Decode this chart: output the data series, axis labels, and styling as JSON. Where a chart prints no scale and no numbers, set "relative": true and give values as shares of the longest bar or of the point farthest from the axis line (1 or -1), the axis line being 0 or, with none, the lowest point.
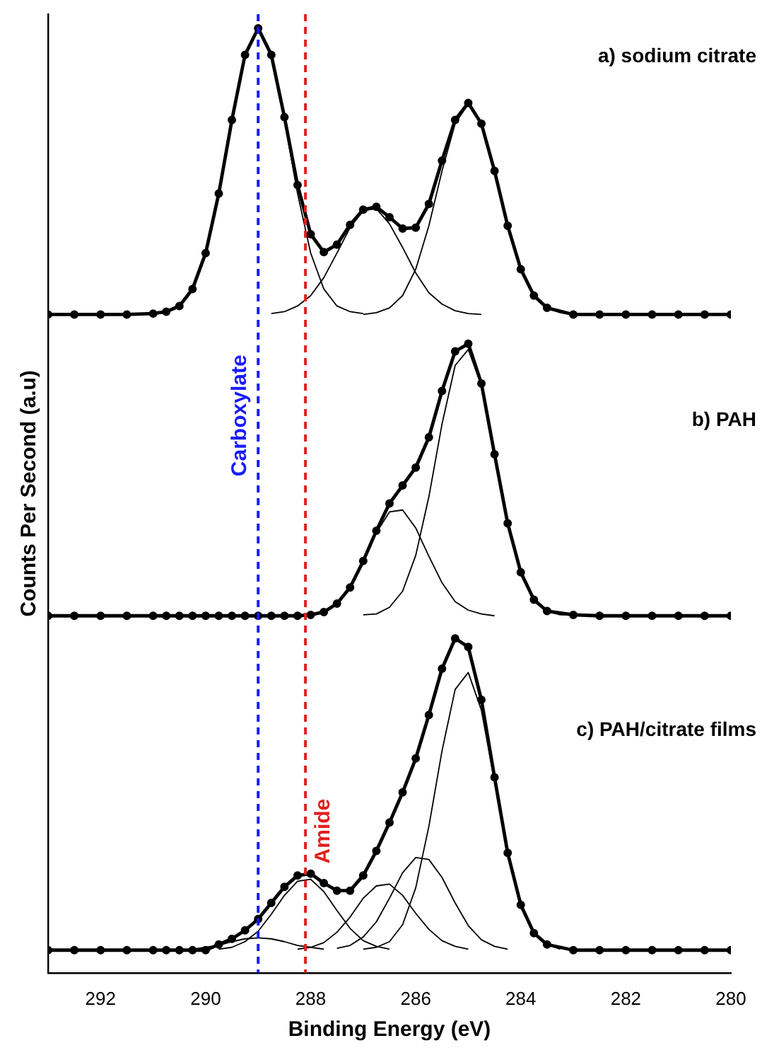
{
  "chart_data": {
    "type": "line",
    "relative": true,
    "xlabel": "Binding Energy (eV)",
    "ylabel": "Counts Per Second (a.u)",
    "xlim": [
      293,
      280
    ],
    "xticks": [
      292,
      290,
      288,
      286,
      284,
      282,
      280
    ],
    "tick_labels": "x",
    "legend": false,
    "line_style": "solid",
    "annotations": [
      "a) sodium citrate",
      "b) PAH",
      "c) PAH/citrate films"
    ],
    "x": [
      293,
      292.5,
      292,
      291.5,
      291,
      290.75,
      290.5,
      290.25,
      290,
      289.75,
      289.5,
      289.25,
      289,
      288.75,
      288.5,
      288.25,
      288,
      287.75,
      287.5,
      287.25,
      287,
      286.75,
      286.5,
      286.25,
      286,
      285.75,
      285.5,
      285.25,
      285,
      284.75,
      284.5,
      284.25,
      284,
      283.75,
      283.5,
      283,
      282.5,
      282,
      281.5,
      281,
      280.5,
      280
    ],
    "ref_lines": [
      {
        "axis": "x",
        "value": 289,
        "label": "Carboxylate",
        "color": "#1a1aff",
        "line_style": "dashed"
      },
      {
        "axis": "x",
        "value": 288.1,
        "label": "Amide",
        "color": "#e02020",
        "line_style": "dashed"
      }
    ],
    "series": [
      {
        "color": "#000000",
        "marker": "circle",
        "values": [
          0.697,
          0.697,
          0.697,
          0.697,
          0.698,
          0.7,
          0.706,
          0.724,
          0.762,
          0.825,
          0.903,
          0.972,
          1.0,
          0.972,
          0.906,
          0.834,
          0.782,
          0.763,
          0.771,
          0.792,
          0.808,
          0.811,
          0.8,
          0.788,
          0.789,
          0.814,
          0.86,
          0.903,
          0.921,
          0.899,
          0.849,
          0.791,
          0.745,
          0.717,
          0.704,
          0.697,
          0.697,
          0.697,
          0.697,
          0.697,
          0.697,
          0.697
        ]
      },
      {
        "color": "#000000",
        "marker": "none",
        "x": [
          291,
          290.75,
          290.5,
          290.25,
          290,
          289.75,
          289.5,
          289.25,
          289,
          288.75,
          288.5,
          288.25,
          288,
          287.75,
          287.5,
          287.25,
          287
        ],
        "values": [
          0.698,
          0.7,
          0.706,
          0.724,
          0.762,
          0.825,
          0.903,
          0.972,
          1.0,
          0.972,
          0.903,
          0.825,
          0.762,
          0.724,
          0.706,
          0.7,
          0.698
        ]
      },
      {
        "color": "#000000",
        "marker": "none",
        "x": [
          288.75,
          288.5,
          288.25,
          288,
          287.75,
          287.5,
          287.25,
          287,
          286.75,
          286.5,
          286.25,
          286,
          285.75,
          285.5,
          285.25,
          285,
          284.75
        ],
        "values": [
          0.698,
          0.7,
          0.706,
          0.717,
          0.736,
          0.762,
          0.789,
          0.807,
          0.809,
          0.793,
          0.768,
          0.741,
          0.72,
          0.708,
          0.701,
          0.698,
          0.697
        ]
      },
      {
        "color": "#000000",
        "marker": "none",
        "x": [
          287,
          286.75,
          286.5,
          286.25,
          286,
          285.75,
          285.5,
          285.25,
          285,
          284.75,
          284.5,
          284.25,
          284,
          283.75,
          283.5,
          283.25,
          283
        ],
        "values": [
          0.697,
          0.699,
          0.704,
          0.717,
          0.745,
          0.791,
          0.849,
          0.899,
          0.92,
          0.899,
          0.849,
          0.791,
          0.745,
          0.717,
          0.704,
          0.699,
          0.697
        ]
      },
      {
        "color": "#000000",
        "marker": "circle",
        "values": [
          0.378,
          0.378,
          0.378,
          0.378,
          0.378,
          0.378,
          0.378,
          0.378,
          0.378,
          0.378,
          0.378,
          0.378,
          0.378,
          0.378,
          0.378,
          0.378,
          0.379,
          0.382,
          0.391,
          0.408,
          0.436,
          0.468,
          0.497,
          0.516,
          0.535,
          0.567,
          0.616,
          0.658,
          0.666,
          0.624,
          0.549,
          0.476,
          0.424,
          0.395,
          0.383,
          0.379,
          0.378,
          0.378,
          0.378,
          0.378,
          0.378,
          0.378
        ]
      },
      {
        "color": "#000000",
        "marker": "none",
        "x": [
          288.25,
          288,
          287.75,
          287.5,
          287.25,
          287,
          286.75,
          286.5,
          286.25,
          286,
          285.75,
          285.5,
          285.25,
          285,
          284.75,
          284.5
        ],
        "values": [
          0.378,
          0.379,
          0.382,
          0.391,
          0.408,
          0.435,
          0.466,
          0.488,
          0.49,
          0.471,
          0.441,
          0.413,
          0.393,
          0.384,
          0.38,
          0.378
        ]
      },
      {
        "color": "#000000",
        "marker": "none",
        "x": [
          287,
          286.75,
          286.5,
          286.25,
          286,
          285.75,
          285.5,
          285.25,
          285,
          284.75,
          284.5,
          284.25,
          284,
          283.75,
          283.5,
          283.25,
          283
        ],
        "values": [
          0.379,
          0.38,
          0.387,
          0.404,
          0.442,
          0.504,
          0.581,
          0.643,
          0.66,
          0.622,
          0.549,
          0.476,
          0.424,
          0.395,
          0.383,
          0.379,
          0.379
        ]
      },
      {
        "color": "#000000",
        "marker": "circle",
        "values": [
          0.024,
          0.024,
          0.024,
          0.024,
          0.024,
          0.024,
          0.024,
          0.024,
          0.024,
          0.03,
          0.036,
          0.045,
          0.057,
          0.074,
          0.091,
          0.103,
          0.105,
          0.095,
          0.087,
          0.087,
          0.103,
          0.129,
          0.159,
          0.191,
          0.227,
          0.273,
          0.322,
          0.354,
          0.345,
          0.289,
          0.207,
          0.127,
          0.072,
          0.042,
          0.03,
          0.024,
          0.024,
          0.024,
          0.024,
          0.024,
          0.024,
          0.024
        ]
      },
      {
        "color": "#000000",
        "marker": "none",
        "x": [
          290.25,
          290,
          289.75,
          289.5,
          289.25,
          289,
          288.75,
          288.5,
          288.25,
          288,
          287.75
        ],
        "values": [
          0.025,
          0.027,
          0.029,
          0.033,
          0.036,
          0.037,
          0.036,
          0.033,
          0.029,
          0.027,
          0.025
        ]
      },
      {
        "color": "#000000",
        "marker": "none",
        "x": [
          289.75,
          289.5,
          289.25,
          289,
          288.75,
          288.5,
          288.25,
          288,
          287.75,
          287.5,
          287.25,
          287,
          286.75,
          286.5
        ],
        "values": [
          0.025,
          0.027,
          0.033,
          0.044,
          0.062,
          0.082,
          0.097,
          0.099,
          0.086,
          0.066,
          0.047,
          0.034,
          0.028,
          0.025
        ]
      },
      {
        "color": "#000000",
        "marker": "none",
        "x": [
          288.25,
          288,
          287.75,
          287.5,
          287.25,
          287,
          286.75,
          286.5,
          286.25,
          286,
          285.75,
          285.5,
          285.25,
          285
        ],
        "values": [
          0.025,
          0.027,
          0.032,
          0.043,
          0.059,
          0.079,
          0.092,
          0.094,
          0.082,
          0.063,
          0.046,
          0.034,
          0.028,
          0.025
        ]
      },
      {
        "color": "#000000",
        "marker": "none",
        "x": [
          287.5,
          287.25,
          287,
          286.75,
          286.5,
          286.25,
          286,
          285.75,
          285.5,
          285.25,
          285,
          284.75,
          284.5,
          284.25
        ],
        "values": [
          0.026,
          0.029,
          0.038,
          0.054,
          0.079,
          0.106,
          0.122,
          0.12,
          0.101,
          0.074,
          0.05,
          0.035,
          0.028,
          0.025
        ]
      },
      {
        "color": "#000000",
        "marker": "none",
        "x": [
          287,
          286.75,
          286.5,
          286.25,
          286,
          285.75,
          285.5,
          285.25,
          285,
          284.75,
          284.5,
          284.25,
          284,
          283.75,
          283.5,
          283.25
        ],
        "values": [
          0.025,
          0.027,
          0.033,
          0.051,
          0.09,
          0.155,
          0.235,
          0.3,
          0.318,
          0.278,
          0.203,
          0.126,
          0.072,
          0.042,
          0.03,
          0.025
        ]
      }
    ]
  }
}
